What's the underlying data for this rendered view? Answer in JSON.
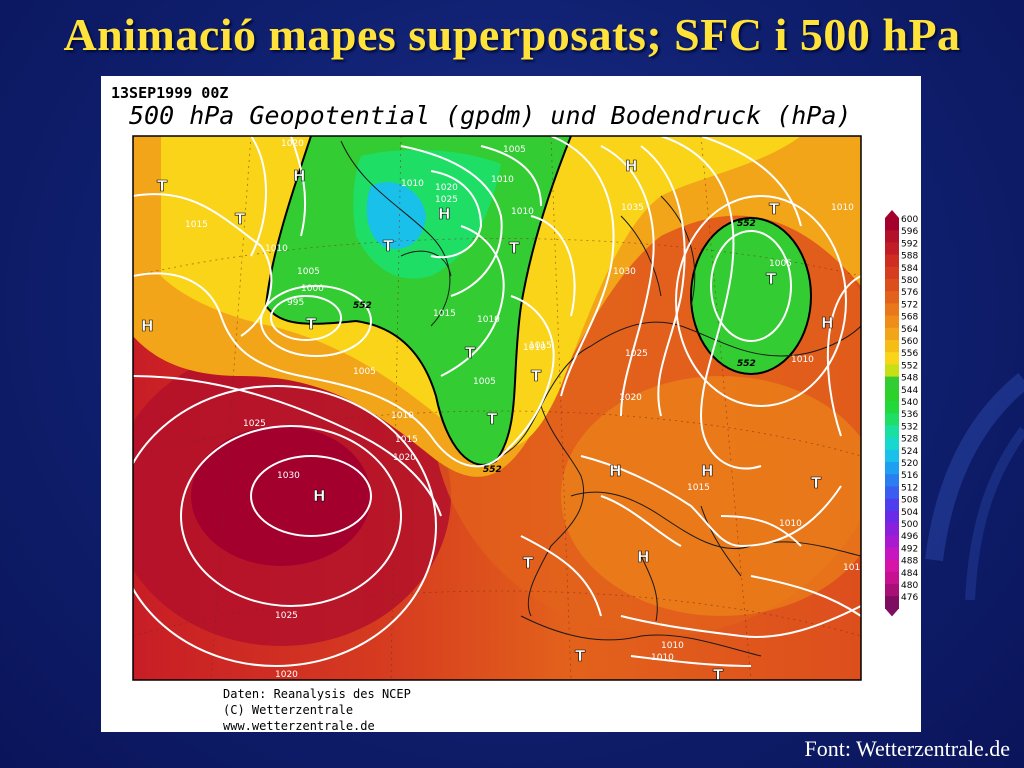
{
  "slide": {
    "title": "Animació mapes superposats; SFC i 500 hPa",
    "credit": "Font: Wetterzentrale.de"
  },
  "map": {
    "date_label": "13SEP1999 00Z",
    "chart_title": "500 hPa Geopotential (gpdm) und Bodendruck (hPa)",
    "footer_lines": [
      "Daten: Reanalysis des NCEP",
      "(C) Wetterzentrale",
      "www.wetterzentrale.de"
    ],
    "legend": {
      "levels": [
        "600",
        "596",
        "592",
        "588",
        "584",
        "580",
        "576",
        "572",
        "568",
        "564",
        "560",
        "556",
        "552",
        "548",
        "544",
        "540",
        "536",
        "532",
        "528",
        "524",
        "520",
        "516",
        "512",
        "508",
        "504",
        "500",
        "496",
        "492",
        "488",
        "484",
        "480",
        "476"
      ],
      "colors": [
        "#a3002e",
        "#b3102a",
        "#c21d26",
        "#cf2c22",
        "#d63c20",
        "#dd4e1d",
        "#e3621b",
        "#e8781a",
        "#ee8e18",
        "#f2a518",
        "#f6bd17",
        "#f9d418",
        "#c7e016",
        "#33cc33",
        "#2ad22a",
        "#22d83a",
        "#1ede66",
        "#19e0a0",
        "#17d8cf",
        "#19c0ea",
        "#1e9ff0",
        "#2b7ef0",
        "#3a5cf0",
        "#4e3ef0",
        "#6a2ae8",
        "#8a20dc",
        "#a71ad0",
        "#c516c2",
        "#d614a8",
        "#c61290",
        "#a81078",
        "#7e0c60"
      ]
    },
    "surface_labels": [
      "1020",
      "1015",
      "1010",
      "1005",
      "1005",
      "1010",
      "1020",
      "1025",
      "1010",
      "1005",
      "1000",
      "995",
      "1015",
      "1015",
      "1010",
      "1005",
      "1010",
      "1010",
      "1015",
      "1020",
      "1025",
      "1030",
      "1025",
      "1020",
      "1035",
      "1030",
      "1025",
      "1015",
      "1020",
      "1015",
      "1010",
      "1010",
      "1010",
      "1010",
      "101",
      "1005",
      "1010"
    ],
    "h500_labels": [
      "552",
      "552",
      "552",
      "552"
    ],
    "highs": [
      "H",
      "H",
      "H",
      "H",
      "H",
      "H",
      "H",
      "H",
      "H"
    ],
    "lows": [
      "T",
      "T",
      "T",
      "T",
      "T",
      "T",
      "T",
      "T",
      "T",
      "T",
      "T",
      "T",
      "T",
      "T"
    ]
  }
}
